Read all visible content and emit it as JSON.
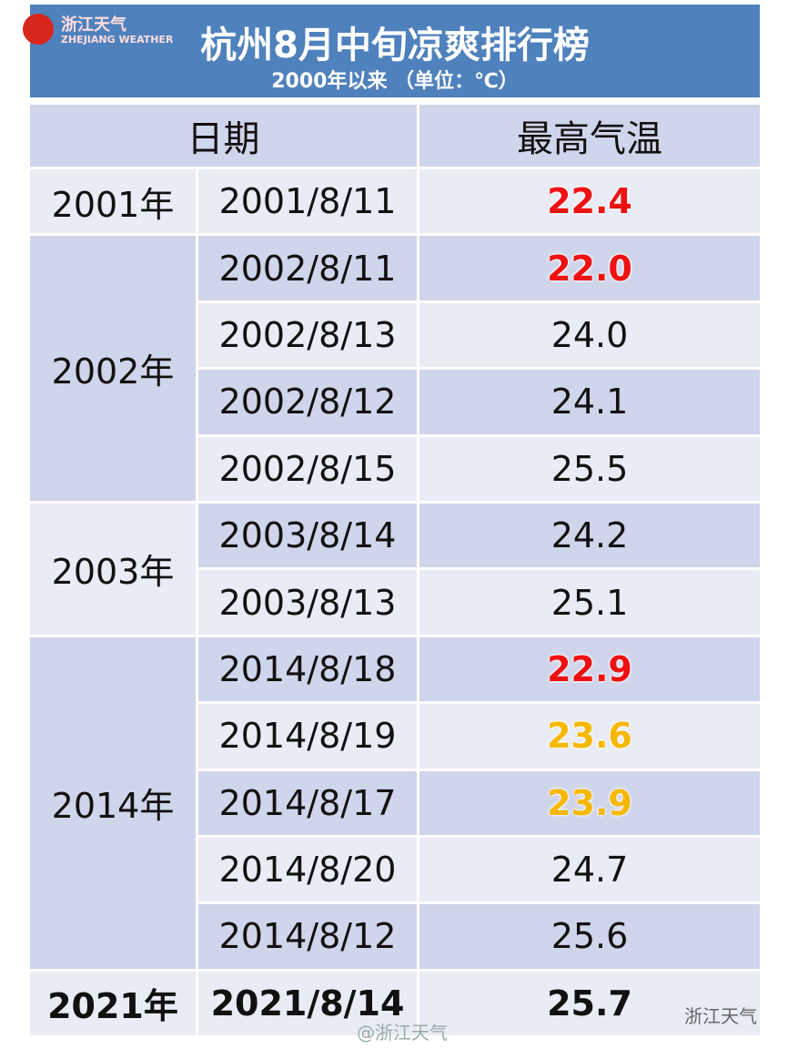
{
  "header": {
    "logo_cn": "浙江天气",
    "logo_en": "ZHEJIANG WEATHER",
    "title": "杭州8月中旬凉爽排行榜",
    "subtitle": "2000年以来 （单位：℃）"
  },
  "table": {
    "columns": [
      "日期",
      "最高气温"
    ],
    "groups": [
      {
        "year": "2001年",
        "rows": [
          {
            "date": "2001/8/11",
            "temp": "22.4",
            "color": "#ee1111"
          }
        ]
      },
      {
        "year": "2002年",
        "rows": [
          {
            "date": "2002/8/11",
            "temp": "22.0",
            "color": "#ee1111"
          },
          {
            "date": "2002/8/13",
            "temp": "24.0"
          },
          {
            "date": "2002/8/12",
            "temp": "24.1"
          },
          {
            "date": "2002/8/15",
            "temp": "25.5"
          }
        ]
      },
      {
        "year": "2003年",
        "rows": [
          {
            "date": "2003/8/14",
            "temp": "24.2"
          },
          {
            "date": "2003/8/13",
            "temp": "25.1"
          }
        ]
      },
      {
        "year": "2014年",
        "rows": [
          {
            "date": "2014/8/18",
            "temp": "22.9",
            "color": "#ee1111"
          },
          {
            "date": "2014/8/19",
            "temp": "23.6",
            "color": "#f5b800"
          },
          {
            "date": "2014/8/17",
            "temp": "23.9",
            "color": "#f5b800"
          },
          {
            "date": "2014/8/20",
            "temp": "24.7"
          },
          {
            "date": "2014/8/12",
            "temp": "25.6"
          }
        ]
      },
      {
        "year": "2021年",
        "bold": true,
        "rows": [
          {
            "date": "2021/8/14",
            "temp": "25.7"
          }
        ]
      }
    ]
  },
  "watermarks": {
    "weibo": "@浙江天气",
    "wechat": "浙江天气"
  }
}
